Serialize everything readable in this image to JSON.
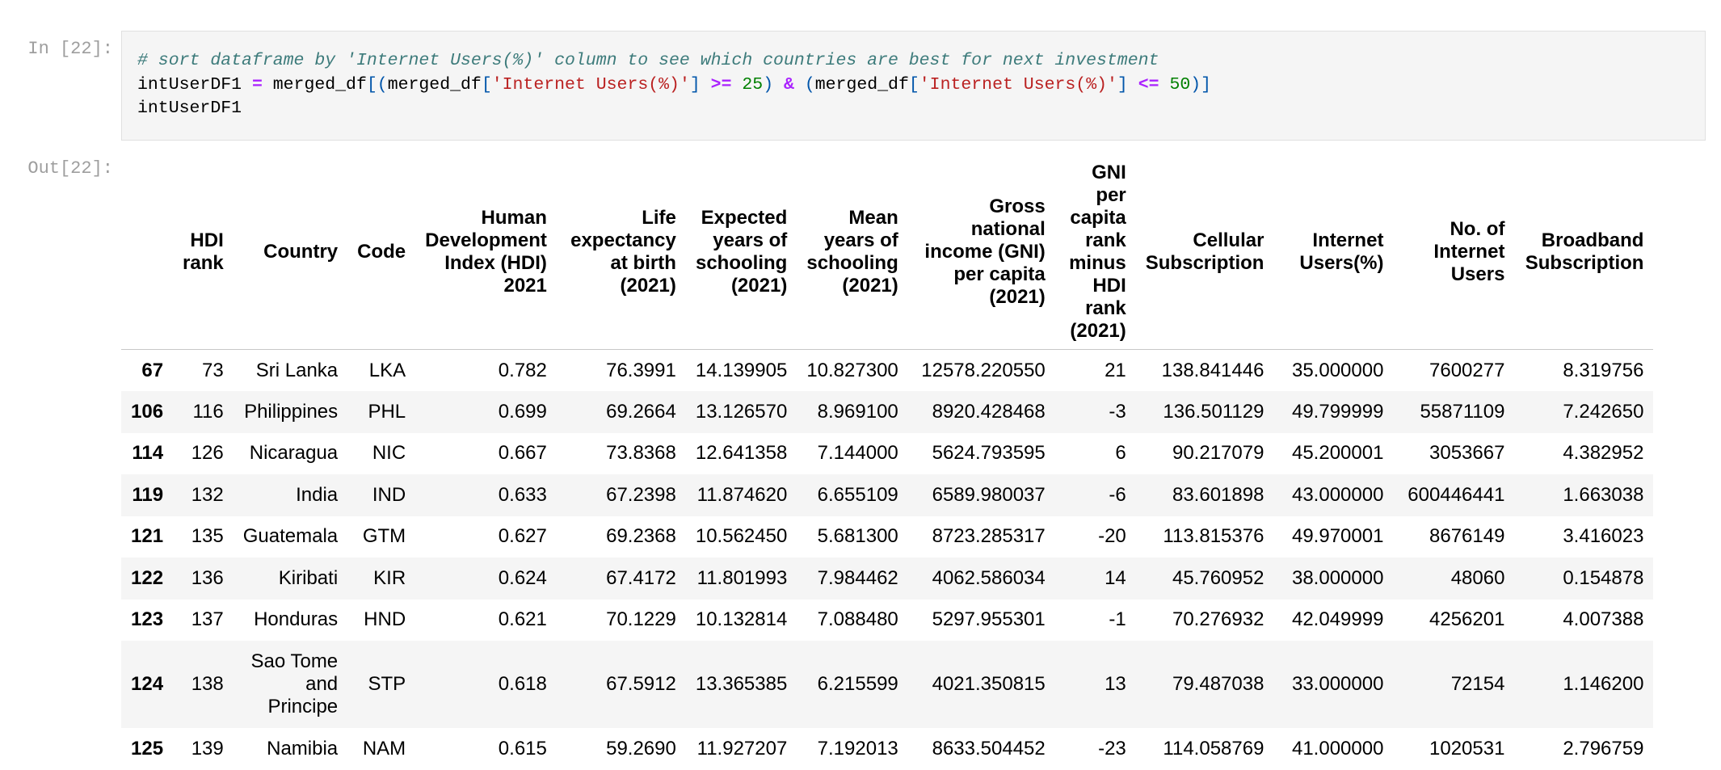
{
  "cell": {
    "in_prompt": "In [22]:",
    "out_prompt": "Out[22]:",
    "code": {
      "line1_comment": "# sort dataframe by 'Internet Users(%)' column to see which countries are best for next investment",
      "line2": {
        "var": "intUserDF1 ",
        "eq": "=",
        "p1": " merged_df",
        "b1": "[(",
        "p2": "merged_df",
        "b2": "[",
        "s1": "'Internet Users(%)'",
        "b3": "]",
        "sp1": " ",
        "op1": ">=",
        "sp2": " ",
        "n1": "25",
        "b4": ")",
        "sp3": " ",
        "amp": "&",
        "sp4": " ",
        "b5": "(",
        "p3": "merged_df",
        "b6": "[",
        "s2": "'Internet Users(%)'",
        "b7": "]",
        "sp5": " ",
        "op2": "<=",
        "sp6": " ",
        "n2": "50",
        "b8": ")]"
      },
      "line3": "intUserDF1"
    }
  },
  "table": {
    "columns": [
      "",
      "HDI rank",
      "Country",
      "Code",
      "Human Development Index (HDI) 2021",
      "Life expectancy at birth (2021)",
      "Expected years of schooling (2021)",
      "Mean years of schooling (2021)",
      "Gross national income (GNI) per capita (2021)",
      "GNI per capita rank minus HDI rank (2021)",
      "Cellular Subscription",
      "Internet Users(%)",
      "No. of Internet Users",
      "Broadband Subscription"
    ],
    "rows": [
      [
        "67",
        "73",
        "Sri Lanka",
        "LKA",
        "0.782",
        "76.3991",
        "14.139905",
        "10.827300",
        "12578.220550",
        "21",
        "138.841446",
        "35.000000",
        "7600277",
        "8.319756"
      ],
      [
        "106",
        "116",
        "Philippines",
        "PHL",
        "0.699",
        "69.2664",
        "13.126570",
        "8.969100",
        "8920.428468",
        "-3",
        "136.501129",
        "49.799999",
        "55871109",
        "7.242650"
      ],
      [
        "114",
        "126",
        "Nicaragua",
        "NIC",
        "0.667",
        "73.8368",
        "12.641358",
        "7.144000",
        "5624.793595",
        "6",
        "90.217079",
        "45.200001",
        "3053667",
        "4.382952"
      ],
      [
        "119",
        "132",
        "India",
        "IND",
        "0.633",
        "67.2398",
        "11.874620",
        "6.655109",
        "6589.980037",
        "-6",
        "83.601898",
        "43.000000",
        "600446441",
        "1.663038"
      ],
      [
        "121",
        "135",
        "Guatemala",
        "GTM",
        "0.627",
        "69.2368",
        "10.562450",
        "5.681300",
        "8723.285317",
        "-20",
        "113.815376",
        "49.970001",
        "8676149",
        "3.416023"
      ],
      [
        "122",
        "136",
        "Kiribati",
        "KIR",
        "0.624",
        "67.4172",
        "11.801993",
        "7.984462",
        "4062.586034",
        "14",
        "45.760952",
        "38.000000",
        "48060",
        "0.154878"
      ],
      [
        "123",
        "137",
        "Honduras",
        "HND",
        "0.621",
        "70.1229",
        "10.132814",
        "7.088480",
        "5297.955301",
        "-1",
        "70.276932",
        "42.049999",
        "4256201",
        "4.007388"
      ],
      [
        "124",
        "138",
        "Sao Tome and Principe",
        "STP",
        "0.618",
        "67.5912",
        "13.365385",
        "6.215599",
        "4021.350815",
        "13",
        "79.487038",
        "33.000000",
        "72154",
        "1.146200"
      ],
      [
        "125",
        "139",
        "Namibia",
        "NAM",
        "0.615",
        "59.2690",
        "11.927207",
        "7.192013",
        "8633.504452",
        "-23",
        "114.058769",
        "41.000000",
        "1020531",
        "2.796759"
      ]
    ]
  }
}
